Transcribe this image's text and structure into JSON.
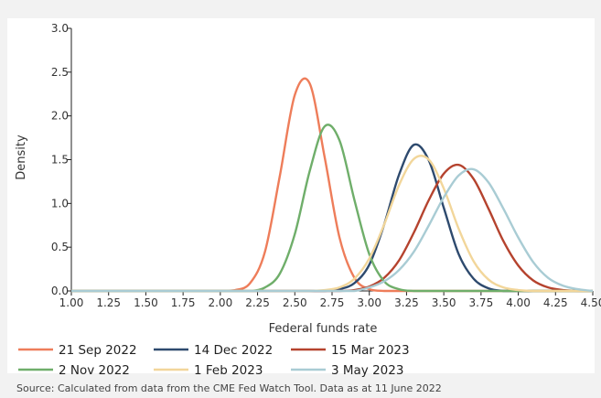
{
  "chart_data": {
    "type": "line",
    "xlabel": "Federal funds rate",
    "ylabel": "Density",
    "xlim": [
      1.0,
      4.5
    ],
    "ylim": [
      0.0,
      3.0
    ],
    "x_ticks": [
      "1.00",
      "1.25",
      "1.50",
      "1.75",
      "2.00",
      "2.25",
      "2.50",
      "2.75",
      "3.00",
      "3.25",
      "3.50",
      "3.75",
      "4.00",
      "4.25",
      "4.50"
    ],
    "y_ticks": [
      "0.0",
      "0.5",
      "1.0",
      "1.5",
      "2.0",
      "2.5",
      "3.0"
    ],
    "grid": false,
    "legend_position": "bottom",
    "x": [
      1.0,
      1.1,
      1.2,
      1.3,
      1.4,
      1.5,
      1.6,
      1.7,
      1.8,
      1.9,
      2.0,
      2.1,
      2.2,
      2.3,
      2.4,
      2.5,
      2.6,
      2.7,
      2.8,
      2.9,
      3.0,
      3.1,
      3.2,
      3.3,
      3.4,
      3.5,
      3.6,
      3.7,
      3.8,
      3.9,
      4.0,
      4.1,
      4.2,
      4.3,
      4.4,
      4.5
    ],
    "series": [
      {
        "name": "21 Sep 2022",
        "color": "#ee7d5a",
        "values": [
          0,
          0,
          0,
          0,
          0,
          0,
          0,
          0,
          0,
          0,
          0,
          0.01,
          0.09,
          0.45,
          1.32,
          2.24,
          2.37,
          1.53,
          0.61,
          0.15,
          0.02,
          0,
          0,
          0,
          0,
          0,
          0,
          0,
          0,
          0,
          0,
          0,
          0,
          0,
          0,
          0
        ]
      },
      {
        "name": "14 Dec 2022",
        "color": "#2e4a6e",
        "values": [
          0,
          0,
          0,
          0,
          0,
          0,
          0,
          0,
          0,
          0,
          0,
          0,
          0,
          0,
          0,
          0,
          0,
          0,
          0.02,
          0.09,
          0.3,
          0.76,
          1.33,
          1.67,
          1.49,
          0.95,
          0.42,
          0.14,
          0.03,
          0,
          0,
          0,
          0,
          0,
          0,
          0
        ]
      },
      {
        "name": "15 Mar 2023",
        "color": "#b5432e",
        "values": [
          0,
          0,
          0,
          0,
          0,
          0,
          0,
          0,
          0,
          0,
          0,
          0,
          0,
          0,
          0,
          0,
          0,
          0,
          0,
          0.01,
          0.05,
          0.15,
          0.35,
          0.67,
          1.04,
          1.34,
          1.44,
          1.28,
          0.94,
          0.57,
          0.29,
          0.12,
          0.04,
          0.01,
          0,
          0
        ]
      },
      {
        "name": "2 Nov 2022",
        "color": "#6fae6a",
        "values": [
          0,
          0,
          0,
          0,
          0,
          0,
          0,
          0,
          0,
          0,
          0,
          0,
          0,
          0.04,
          0.2,
          0.65,
          1.37,
          1.88,
          1.72,
          1.04,
          0.42,
          0.11,
          0.02,
          0,
          0,
          0,
          0,
          0,
          0,
          0,
          0,
          0,
          0,
          0,
          0,
          0
        ]
      },
      {
        "name": "1 Feb 2023",
        "color": "#f2d69a",
        "values": [
          0,
          0,
          0,
          0,
          0,
          0,
          0,
          0,
          0,
          0,
          0,
          0,
          0,
          0,
          0,
          0,
          0,
          0.01,
          0.04,
          0.14,
          0.37,
          0.76,
          1.21,
          1.51,
          1.5,
          1.17,
          0.71,
          0.34,
          0.13,
          0.04,
          0.01,
          0,
          0,
          0,
          0,
          0
        ]
      },
      {
        "name": "3 May 2023",
        "color": "#a9ccd4",
        "values": [
          0,
          0,
          0,
          0,
          0,
          0,
          0,
          0,
          0,
          0,
          0,
          0,
          0,
          0,
          0,
          0,
          0,
          0,
          0,
          0,
          0.04,
          0.11,
          0.24,
          0.45,
          0.75,
          1.07,
          1.32,
          1.39,
          1.24,
          0.94,
          0.61,
          0.33,
          0.15,
          0.06,
          0.02,
          0
        ]
      }
    ],
    "source": "Source: Calculated from data from the CME Fed Watch Tool. Data as at 11 June 2022"
  }
}
